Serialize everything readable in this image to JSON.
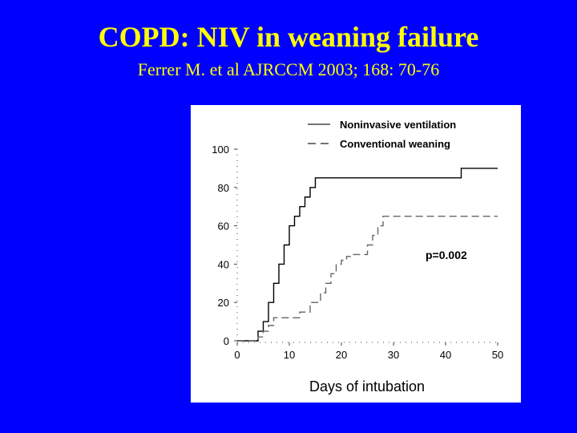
{
  "slide": {
    "title": "COPD: NIV in weaning failure",
    "subtitle": "Ferrer M. et al AJRCCM 2003; 168: 70-76",
    "background_color": "#0000ff",
    "title_color": "#ffff00"
  },
  "chart_data": {
    "type": "line",
    "step": true,
    "title": "",
    "xlabel": "Days of intubation",
    "ylabel": "",
    "xlim": [
      0,
      50
    ],
    "ylim": [
      0,
      100
    ],
    "x_ticks": [
      "0",
      "10",
      "20",
      "30",
      "40",
      "50"
    ],
    "y_ticks": [
      "0",
      "20",
      "40",
      "60",
      "80",
      "100"
    ],
    "legend_position": "top",
    "annotation": "p=0.002",
    "series": [
      {
        "name": "Noninvasive ventilation",
        "line_style": "solid",
        "color": "#000000",
        "x": [
          0,
          4,
          5,
          6,
          7,
          8,
          9,
          10,
          11,
          12,
          13,
          14,
          15,
          28,
          43,
          50
        ],
        "y": [
          0,
          5,
          10,
          20,
          30,
          40,
          50,
          60,
          65,
          70,
          75,
          80,
          85,
          85,
          90,
          90
        ]
      },
      {
        "name": "Conventional weaning",
        "line_style": "dashed",
        "color": "#000000",
        "x": [
          0,
          4,
          5,
          6,
          7,
          12,
          14,
          16,
          17,
          18,
          19,
          20,
          21,
          22,
          25,
          26,
          27,
          28,
          50
        ],
        "y": [
          0,
          2,
          5,
          8,
          12,
          15,
          20,
          25,
          30,
          35,
          40,
          42,
          44,
          45,
          50,
          55,
          60,
          65,
          65
        ]
      }
    ]
  }
}
